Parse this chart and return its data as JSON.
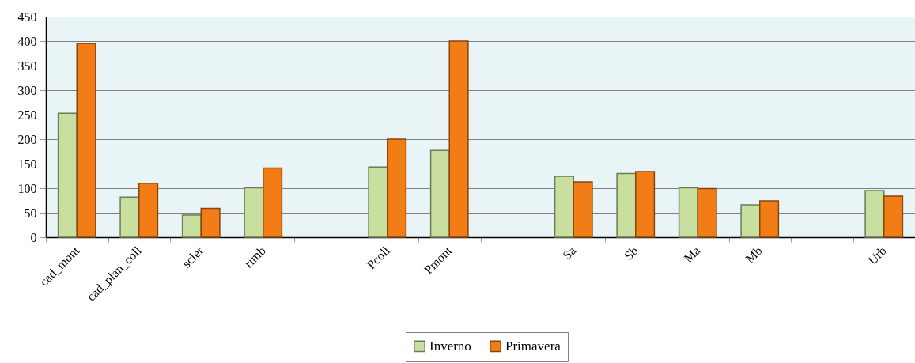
{
  "chart_data": {
    "type": "bar",
    "categories": [
      "cad_mont",
      "cad_plan_coll",
      "scler",
      "rimb",
      null,
      "Pcoll",
      "Pmont",
      null,
      "Sa",
      "Sb",
      "Ma",
      "Mb",
      null,
      "Urb"
    ],
    "series": [
      {
        "name": "Inverno",
        "color": "#c8df9f",
        "values": [
          253,
          82,
          45,
          101,
          null,
          143,
          177,
          null,
          124,
          130,
          101,
          66,
          null,
          95
        ]
      },
      {
        "name": "Primavera",
        "color": "#f27d17",
        "values": [
          395,
          110,
          59,
          141,
          null,
          200,
          400,
          null,
          113,
          134,
          99,
          74,
          null,
          84
        ]
      }
    ],
    "ylim": [
      0,
      450
    ],
    "yticks": [
      0,
      50,
      100,
      150,
      200,
      250,
      300,
      350,
      400,
      450
    ],
    "grid": "y",
    "legend": "bottom"
  }
}
